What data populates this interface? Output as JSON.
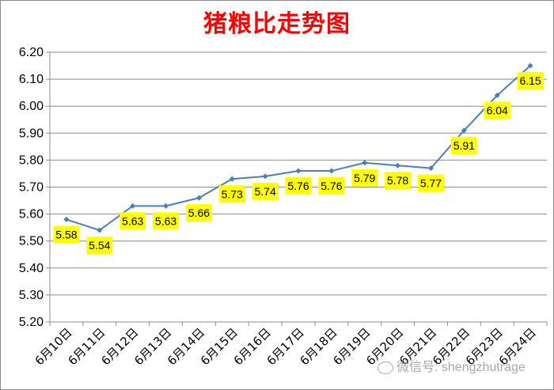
{
  "chart_data": {
    "type": "line",
    "title": "猪粮比走势图",
    "categories": [
      "6月10日",
      "6月11日",
      "6月12日",
      "6月13日",
      "6月14日",
      "6月15日",
      "6月16日",
      "6月17日",
      "6月18日",
      "6月19日",
      "6月20日",
      "6月21日",
      "6月22日",
      "6月23日",
      "6月24日"
    ],
    "values": [
      5.58,
      5.54,
      5.63,
      5.63,
      5.66,
      5.73,
      5.74,
      5.76,
      5.76,
      5.79,
      5.78,
      5.77,
      5.91,
      6.04,
      6.15
    ],
    "data_labels": [
      "5.58",
      "5.54",
      "5.63",
      "5.63",
      "5.66",
      "5.73",
      "5.74",
      "5.76",
      "5.76",
      "5.79",
      "5.78",
      "5.77",
      "5.91",
      "6.04",
      "6.15"
    ],
    "yticks": [
      "5.20",
      "5.30",
      "5.40",
      "5.50",
      "5.60",
      "5.70",
      "5.80",
      "5.90",
      "6.00",
      "6.10",
      "6.20"
    ],
    "ylim": [
      5.2,
      6.2
    ],
    "xlabel": "",
    "ylabel": "",
    "grid": true,
    "legend": false,
    "line_color": "#4a7ebb",
    "label_bg_color": "#ffff00"
  },
  "watermark": {
    "text": "微信号: shengzhutrage",
    "icon": "wechat-icon"
  }
}
